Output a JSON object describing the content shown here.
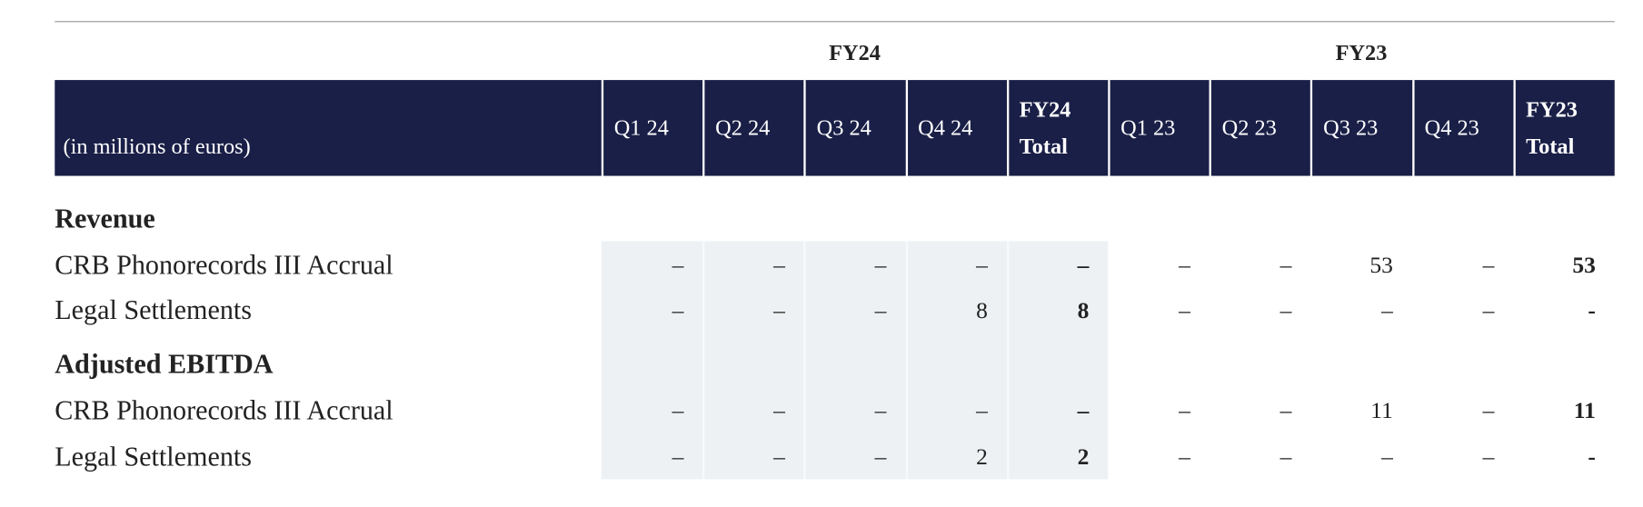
{
  "table": {
    "unit_label": "(in millions of euros)",
    "groups": [
      "FY24",
      "FY23"
    ],
    "columns": [
      "Q1 24",
      "Q2 24",
      "Q3 24",
      "Q4 24",
      "FY24 Total",
      "Q1 23",
      "Q2 23",
      "Q3 23",
      "Q4 23",
      "FY23 Total"
    ],
    "sections": [
      {
        "title": "Revenue",
        "rows": [
          {
            "label": "CRB Phonorecords III Accrual",
            "cells": [
              "–",
              "–",
              "–",
              "–",
              "–",
              "–",
              "–",
              "53",
              "–",
              "53"
            ]
          },
          {
            "label": "Legal Settlements",
            "cells": [
              "–",
              "–",
              "–",
              "8",
              "8",
              "–",
              "–",
              "–",
              "–",
              "-"
            ]
          }
        ]
      },
      {
        "title": "Adjusted EBITDA",
        "rows": [
          {
            "label": "CRB Phonorecords III Accrual",
            "cells": [
              "–",
              "–",
              "–",
              "–",
              "–",
              "–",
              "–",
              "11",
              "–",
              "11"
            ]
          },
          {
            "label": "Legal Settlements",
            "cells": [
              "–",
              "–",
              "–",
              "2",
              "2",
              "–",
              "–",
              "–",
              "–",
              "-"
            ]
          }
        ]
      }
    ]
  }
}
